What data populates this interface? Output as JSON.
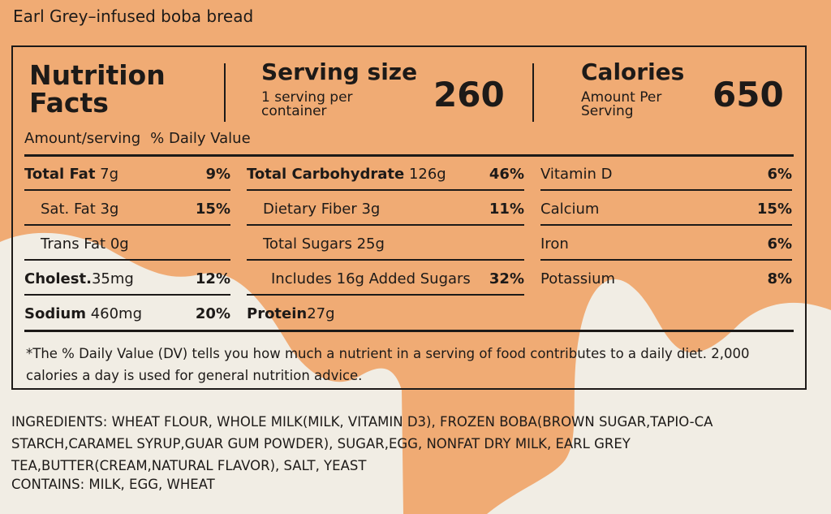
{
  "product_name": "Earl Grey–infused boba bread",
  "panel": {
    "title_line1": "Nutrition",
    "title_line2": "Facts",
    "serving_label": "Serving size",
    "serving_sub_line1": "1 serving per",
    "serving_sub_line2": "container",
    "serving_value": "260",
    "calories_label": "Calories",
    "calories_sub_line1": "Amount Per",
    "calories_sub_line2": "Serving",
    "calories_value": "650",
    "amount_per_serving": "Amount/serving",
    "daily_value_header": "% Daily Value"
  },
  "nutrients_left": [
    {
      "name": "Total Fat",
      "amount": "7g",
      "pct": "9%"
    },
    {
      "name": "Sat. Fat",
      "amount": "3g",
      "pct": "15%"
    },
    {
      "name": "Trans Fat",
      "amount": "0g",
      "pct": ""
    },
    {
      "name": "Cholest.",
      "amount": "35mg",
      "pct": "12%"
    },
    {
      "name": "Sodium",
      "amount": "460mg",
      "pct": "20%"
    }
  ],
  "nutrients_mid": [
    {
      "name": "Total Carbohydrate",
      "amount": "126g",
      "pct": "46%"
    },
    {
      "name": "Dietary Fiber",
      "amount": "3g",
      "pct": "11%"
    },
    {
      "name": "Total Sugars",
      "amount": "25g",
      "pct": ""
    },
    {
      "name": "Includes 16g Added Sugars",
      "amount": "",
      "pct": "32%"
    },
    {
      "name": "Protein",
      "amount": "27g",
      "pct": ""
    }
  ],
  "nutrients_right": [
    {
      "name": "Vitamin D",
      "pct": "6%"
    },
    {
      "name": "Calcium",
      "pct": "15%"
    },
    {
      "name": "Iron",
      "pct": "6%"
    },
    {
      "name": "Potassium",
      "pct": "8%"
    }
  ],
  "footnote": "*The % Daily Value (DV) tells you how much a nutrient in a  serving of food contributes to a daily diet. 2,000 calories a day is used for general nutrition advice.",
  "ingredients": "INGREDIENTS: WHEAT FLOUR, WHOLE MILK(MILK, VITAMIN D3), FROZEN BOBA(BROWN SUGAR,TAPIO-CA STARCH,CARAMEL SYRUP,GUAR GUM POWDER), SUGAR,EGG, NONFAT DRY MILK, EARL GREY TEA,BUTTER(CREAM,NATURAL FLAVOR), SALT, YEAST",
  "contains": "CONTAINS: MILK, EGG, WHEAT",
  "colors": {
    "background": "#f0ab74",
    "cream": "#f1ede4",
    "ink": "#1d1a18"
  }
}
